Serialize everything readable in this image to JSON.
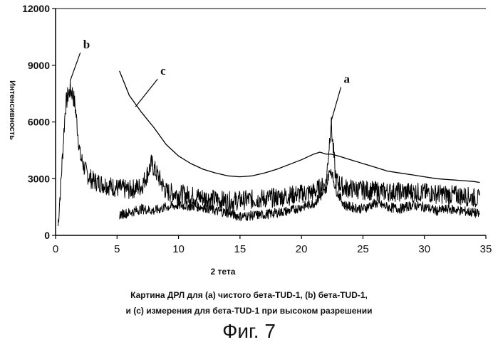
{
  "chart_data": {
    "type": "line",
    "title": "",
    "xlabel": "2 тета",
    "ylabel": "Интенсивность",
    "xlim": [
      0,
      35
    ],
    "ylim": [
      0,
      12000
    ],
    "x_ticks": [
      0,
      5,
      10,
      15,
      20,
      25,
      30,
      35
    ],
    "y_ticks": [
      0,
      3000,
      6000,
      9000,
      12000
    ],
    "grid": false,
    "legend": "none",
    "line_color": "#000000",
    "annotations": [
      {
        "text": "a",
        "at_x": 22.4,
        "at_y": 6000
      },
      {
        "text": "b",
        "at_x": 1.2,
        "at_y": 8200
      },
      {
        "text": "c",
        "at_x": 6.5,
        "at_y": 6800
      }
    ],
    "series": [
      {
        "x": [
          0.2,
          0.5,
          0.8,
          1.0,
          1.2,
          1.4,
          1.6,
          1.8,
          2.0,
          2.5,
          3.0,
          4.0,
          5.0,
          6.0,
          7.0,
          7.5,
          7.8,
          8.2,
          9.0,
          10.0,
          12.0,
          14.0,
          16.0,
          18.0,
          20.0,
          21.0,
          22.0,
          22.4,
          22.8,
          23.5,
          25.0,
          27.0,
          29.0,
          31.0,
          33.0,
          34.0,
          34.5
        ],
        "values": [
          500,
          3500,
          6800,
          7400,
          7700,
          7500,
          6800,
          5500,
          4200,
          3300,
          2900,
          2700,
          2500,
          2400,
          2600,
          3300,
          3800,
          3300,
          2300,
          2200,
          2000,
          1800,
          1900,
          2000,
          2200,
          2300,
          2700,
          6000,
          2900,
          2500,
          2400,
          2300,
          2300,
          2200,
          2100,
          2000,
          1900
        ]
      },
      {
        "x": [
          5.2,
          6.0,
          7.0,
          8.0,
          9.0,
          10.0,
          11.0,
          12.0,
          13.0,
          14.0,
          15.0,
          16.0,
          17.0,
          18.0,
          19.0,
          20.0,
          21.0,
          21.5,
          22.0,
          22.2,
          22.4,
          22.8,
          23.5,
          24.0,
          25.0,
          26.0,
          27.0,
          28.0,
          29.0,
          30.0,
          31.0,
          32.0,
          33.0,
          34.0,
          34.5
        ],
        "values": [
          1100,
          1200,
          1400,
          1300,
          1500,
          1600,
          1550,
          1500,
          1300,
          1200,
          1000,
          1050,
          1100,
          1200,
          1300,
          1500,
          1700,
          2000,
          2400,
          3200,
          3500,
          2400,
          1600,
          1500,
          1400,
          1700,
          1500,
          1400,
          1600,
          1500,
          1300,
          1400,
          1300,
          1200,
          1100
        ]
      },
      {
        "x": [
          5.2,
          6.0,
          7.0,
          8.0,
          9.0,
          10.0,
          11.0,
          12.0,
          13.0,
          14.0,
          15.0,
          16.0,
          17.0,
          18.0,
          19.0,
          20.0,
          21.0,
          21.5,
          22.0,
          22.4,
          23.0,
          24.0,
          25.0,
          26.0,
          27.0,
          28.0,
          29.0,
          30.0,
          31.0,
          32.0,
          33.0,
          34.0,
          34.5
        ],
        "values": [
          8700,
          7400,
          6500,
          5700,
          4800,
          4200,
          3800,
          3500,
          3300,
          3150,
          3100,
          3150,
          3300,
          3500,
          3750,
          4000,
          4300,
          4400,
          4300,
          4300,
          4200,
          4000,
          3800,
          3600,
          3400,
          3300,
          3200,
          3100,
          3000,
          2950,
          2900,
          2850,
          2800
        ]
      }
    ]
  },
  "caption": {
    "line1": "Картина ДРЛ для (a) чистого бета-TUD-1,  (b) бета-TUD-1,",
    "line2": "и (c) измерения для бета-TUD-1 при высоком разрешении"
  },
  "figure_label": "Фиг. 7"
}
